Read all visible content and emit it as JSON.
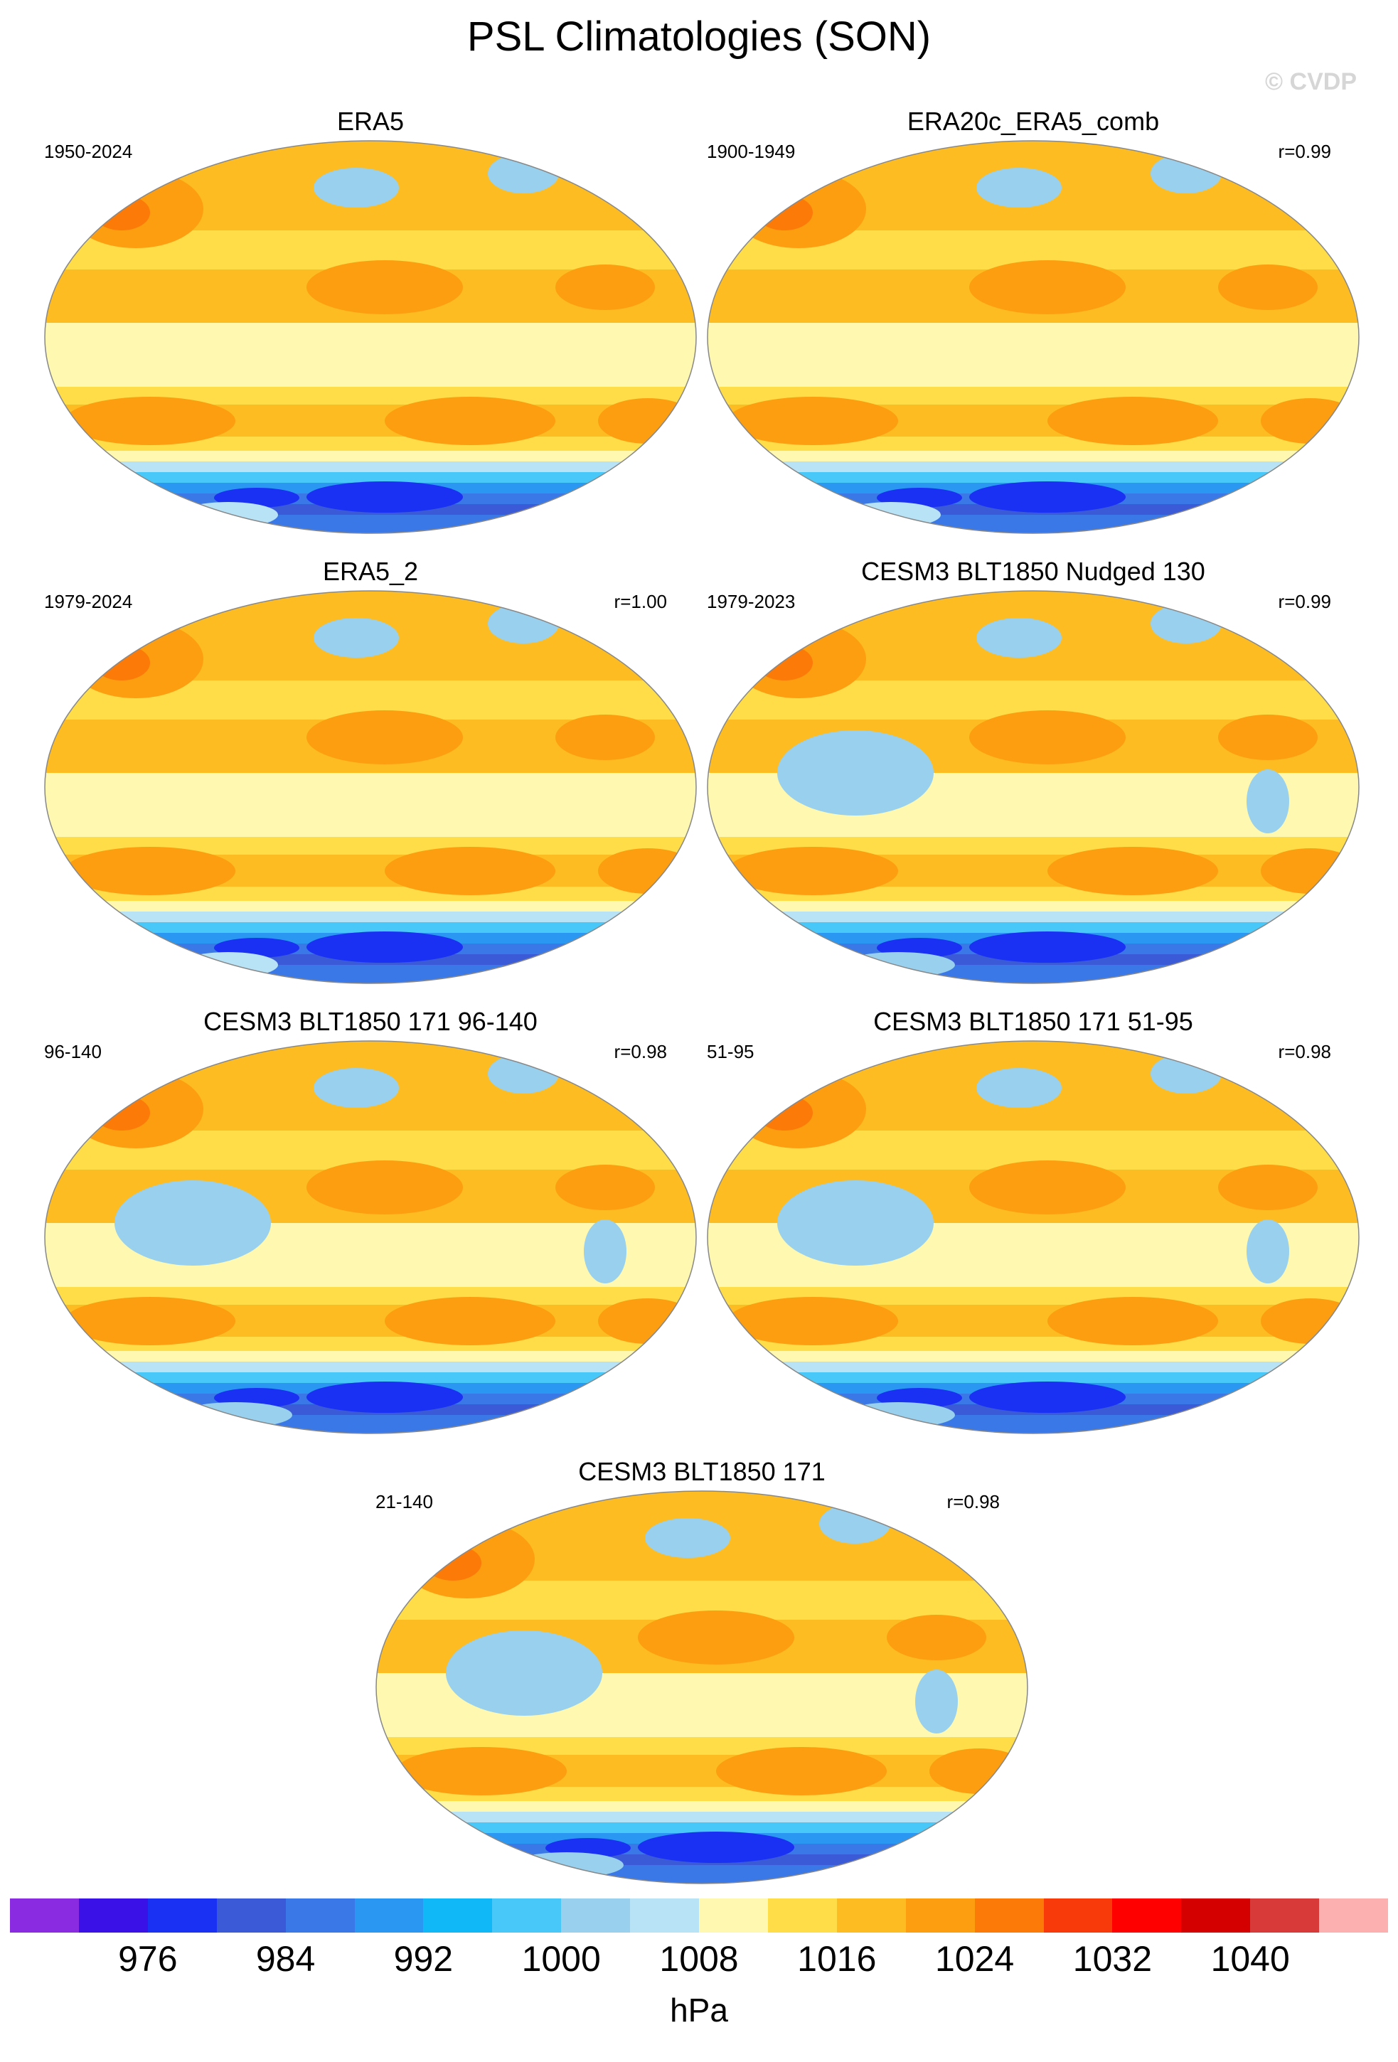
{
  "page": {
    "title": "PSL Climatologies (SON)",
    "watermark": "© CVDP"
  },
  "chart_data": [
    {
      "type": "heatmap",
      "title": "ERA5",
      "left_label": "1950-2024",
      "right_label": "",
      "variant": "obs"
    },
    {
      "type": "heatmap",
      "title": "ERA20c_ERA5_comb",
      "left_label": "1900-1949",
      "right_label": "r=0.99",
      "variant": "obs"
    },
    {
      "type": "heatmap",
      "title": "ERA5_2",
      "left_label": "1979-2024",
      "right_label": "r=1.00",
      "variant": "obs"
    },
    {
      "type": "heatmap",
      "title": "CESM3 BLT1850 Nudged 130",
      "left_label": "1979-2023",
      "right_label": "r=0.99",
      "variant": "model"
    },
    {
      "type": "heatmap",
      "title": "CESM3 BLT1850 171 96-140",
      "left_label": "96-140",
      "right_label": "r=0.98",
      "variant": "model"
    },
    {
      "type": "heatmap",
      "title": "CESM3 BLT1850 171 51-95",
      "left_label": "51-95",
      "right_label": "r=0.98",
      "variant": "model"
    },
    {
      "type": "heatmap",
      "title": "CESM3 BLT1850 171",
      "left_label": "21-140",
      "right_label": "r=0.98",
      "variant": "model"
    }
  ],
  "colorbar": {
    "colors": [
      "#8a2be2",
      "#3a12e8",
      "#1a30f2",
      "#3a5ad8",
      "#3a78e8",
      "#2a98f2",
      "#10b8f8",
      "#48c8f8",
      "#98d0ee",
      "#b8e2f6",
      "#fef8b0",
      "#fedd48",
      "#fdbd22",
      "#fd9e10",
      "#fc7a08",
      "#f83a0a",
      "#ff0000",
      "#d40000",
      "#d83a3a",
      "#fdb0b0"
    ],
    "tick_labels": [
      "976",
      "984",
      "992",
      "1000",
      "1008",
      "1016",
      "1024",
      "1032",
      "1040"
    ],
    "units": "hPa"
  }
}
